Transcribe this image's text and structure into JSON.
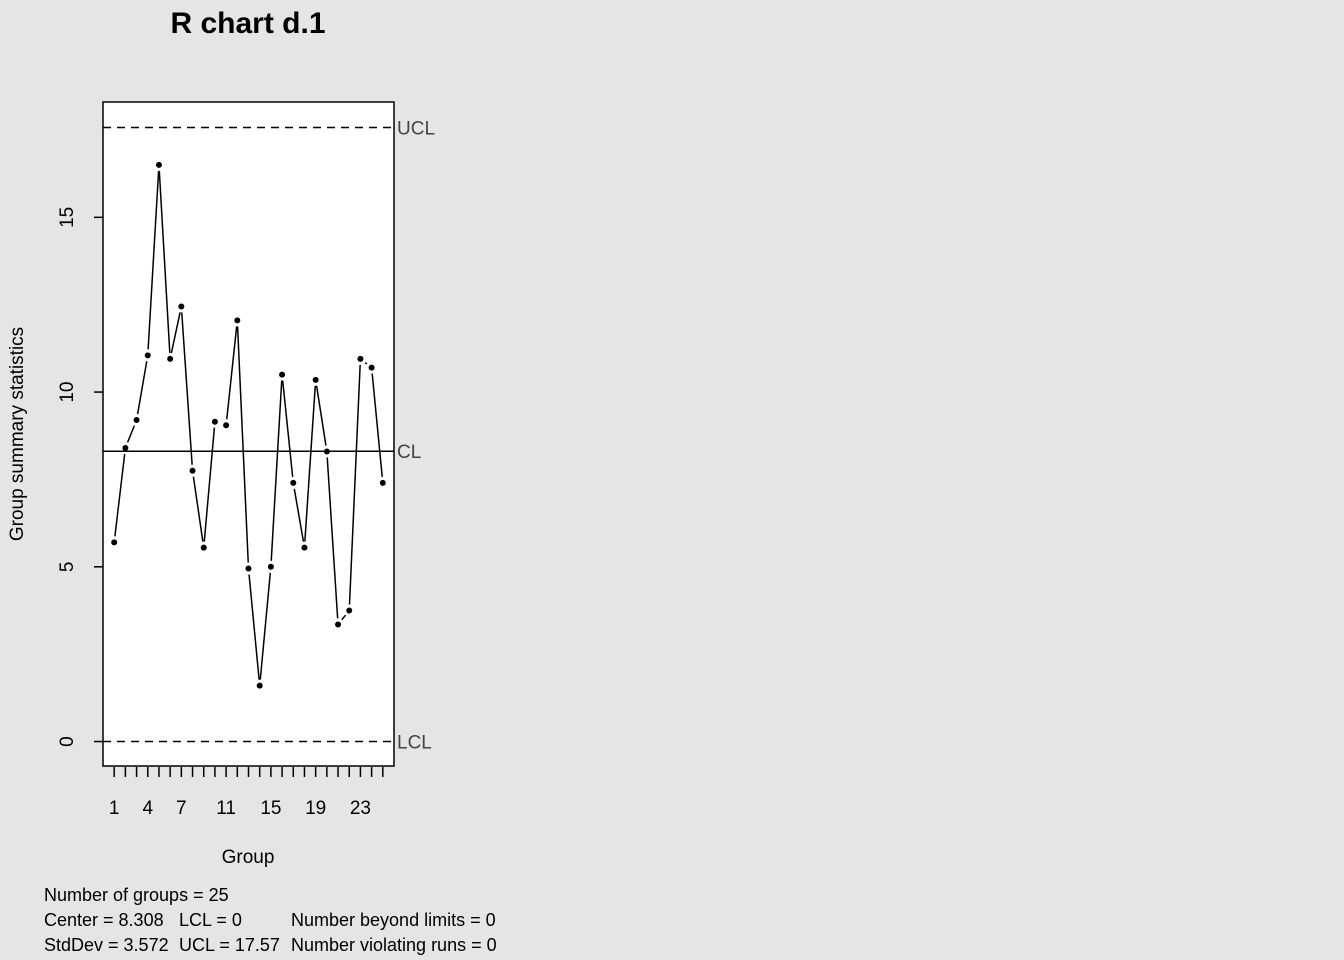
{
  "chart_data": {
    "type": "line",
    "title": "R chart d.1",
    "xlabel": "Group",
    "ylabel": "Group summary statistics",
    "x": [
      1,
      2,
      3,
      4,
      5,
      6,
      7,
      8,
      9,
      10,
      11,
      12,
      13,
      14,
      15,
      16,
      17,
      18,
      19,
      20,
      21,
      22,
      23,
      24,
      25
    ],
    "values": [
      5.7,
      8.4,
      9.2,
      11.05,
      16.5,
      10.95,
      12.45,
      7.75,
      5.55,
      9.15,
      9.05,
      12.05,
      4.95,
      1.6,
      5.0,
      10.5,
      7.4,
      5.55,
      10.35,
      8.3,
      3.35,
      3.75,
      10.95,
      10.7,
      7.4
    ],
    "xticks": [
      1,
      2,
      3,
      4,
      5,
      6,
      7,
      8,
      9,
      10,
      11,
      12,
      13,
      14,
      15,
      16,
      17,
      18,
      19,
      20,
      21,
      22,
      23,
      24,
      25
    ],
    "xtick_labels": [
      "1",
      "4",
      "7",
      "11",
      "15",
      "19",
      "23"
    ],
    "xtick_label_positions": [
      1,
      4,
      7,
      11,
      15,
      19,
      23
    ],
    "yticks": [
      "0",
      "5",
      "10",
      "15"
    ],
    "ytick_values": [
      0,
      5,
      10,
      15
    ],
    "ylim": [
      -0.7,
      18.3
    ],
    "xlim": [
      0,
      26
    ],
    "grid": false,
    "limits": {
      "ucl": {
        "label": "UCL",
        "value": 17.57
      },
      "cl": {
        "label": "CL",
        "value": 8.308
      },
      "lcl": {
        "label": "LCL",
        "value": 0
      }
    }
  },
  "stats": {
    "groups": "Number of groups = 25",
    "center": "Center = 8.308",
    "lcl": "LCL = 0",
    "beyond": "Number beyond limits = 0",
    "stddev": "StdDev = 3.572",
    "ucl": "UCL = 17.57",
    "runs": "Number violating runs = 0"
  }
}
